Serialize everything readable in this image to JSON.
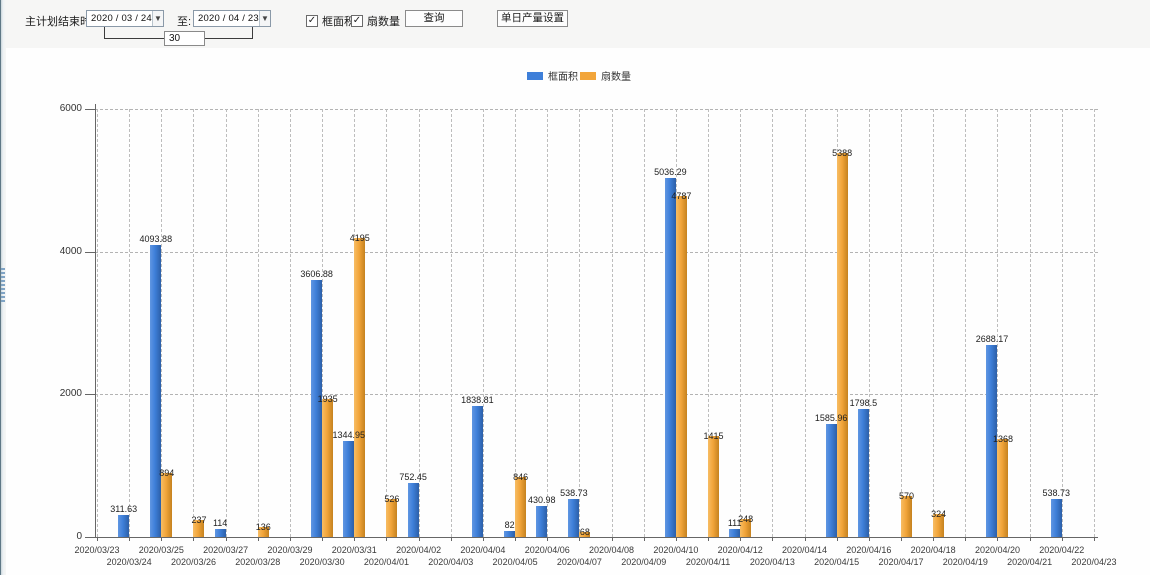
{
  "toolbar": {
    "label_plan_end": "主计划结束时间:",
    "date_from": "2020 / 03 / 24",
    "label_to": "至:",
    "date_to": "2020 / 04 / 23",
    "days_value": "30",
    "checkbox_frame_area": "框面积",
    "checkbox_sash_count": "扇数量",
    "query_button": "查询",
    "daily_output_button": "单日产量设置"
  },
  "legend": {
    "items": [
      {
        "label": "框面积",
        "color": "#3e7fd9"
      },
      {
        "label": "扇数量",
        "color": "#f2a53a"
      }
    ]
  },
  "chart_data": {
    "type": "bar",
    "title": "",
    "xlabel": "",
    "ylabel": "",
    "ylim": [
      0,
      6000
    ],
    "yticks": [
      0,
      2000,
      4000,
      6000
    ],
    "grid": true,
    "legend_position": "top",
    "categories": [
      "2020/03/23",
      "2020/03/24",
      "2020/03/25",
      "2020/03/26",
      "2020/03/27",
      "2020/03/28",
      "2020/03/29",
      "2020/03/30",
      "2020/03/31",
      "2020/04/01",
      "2020/04/02",
      "2020/04/03",
      "2020/04/04",
      "2020/04/05",
      "2020/04/06",
      "2020/04/07",
      "2020/04/08",
      "2020/04/09",
      "2020/04/10",
      "2020/04/11",
      "2020/04/12",
      "2020/04/13",
      "2020/04/14",
      "2020/04/15",
      "2020/04/16",
      "2020/04/17",
      "2020/04/18",
      "2020/04/19",
      "2020/04/20",
      "2020/04/21",
      "2020/04/22",
      "2020/04/23"
    ],
    "series": [
      {
        "name": "框面积",
        "color": "#3e7fd9",
        "values": [
          null,
          311.63,
          4093.88,
          null,
          114,
          null,
          null,
          3606.88,
          1344.95,
          null,
          752.45,
          null,
          1838.81,
          82,
          430.98,
          538.73,
          null,
          null,
          5036.29,
          null,
          111,
          null,
          null,
          1585.96,
          1798.5,
          null,
          null,
          null,
          2688.17,
          null,
          538.73,
          null
        ]
      },
      {
        "name": "扇数量",
        "color": "#f2a53a",
        "values": [
          null,
          null,
          894,
          237,
          null,
          136,
          null,
          1935,
          4195,
          526,
          null,
          null,
          null,
          846,
          null,
          68,
          null,
          null,
          4787,
          1415,
          248,
          null,
          null,
          5388,
          null,
          570,
          324,
          null,
          1368,
          null,
          null,
          null
        ]
      }
    ]
  }
}
